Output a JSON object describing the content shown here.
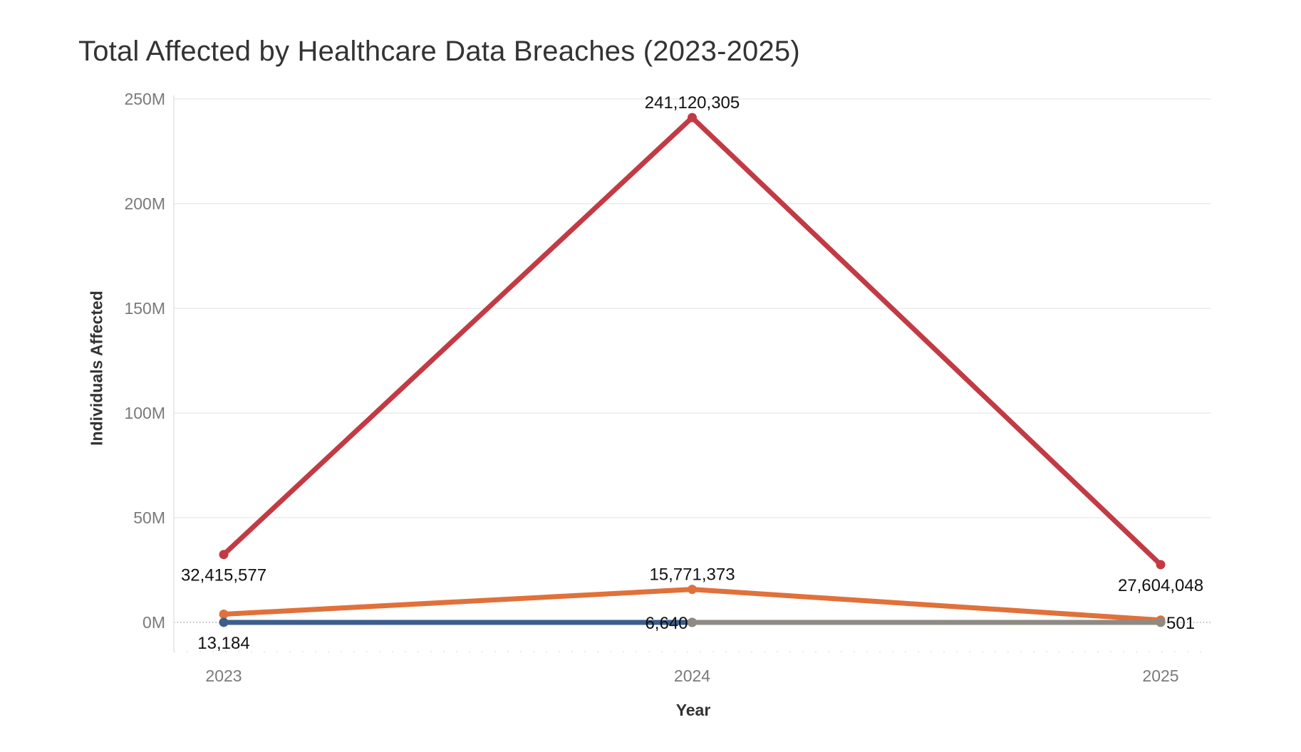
{
  "chart_data": {
    "type": "line",
    "title": "Total Affected by Healthcare Data Breaches (2023-2025)",
    "xlabel": "Year",
    "ylabel": "Individuals Affected",
    "categories": [
      "2023",
      "2024",
      "2025"
    ],
    "ylim": [
      -14000000,
      250000000
    ],
    "yticks": [
      {
        "value": 0,
        "label": "0M"
      },
      {
        "value": 50000000,
        "label": "50M"
      },
      {
        "value": 100000000,
        "label": "100M"
      },
      {
        "value": 150000000,
        "label": "150M"
      },
      {
        "value": 200000000,
        "label": "200M"
      },
      {
        "value": 250000000,
        "label": "250M"
      }
    ],
    "grid": true,
    "legend": "none",
    "series": [
      {
        "color": "#c23b44",
        "values": [
          32415577,
          241120305,
          27604048
        ],
        "labels": [
          "32,415,577",
          "241,120,305",
          "27,604,048"
        ],
        "label_position": [
          "below",
          "above",
          "below"
        ]
      },
      {
        "color": "#e0713a",
        "values": [
          3900000,
          15771373,
          1100000
        ],
        "labels": [
          null,
          "15,771,373",
          null
        ],
        "label_position": [
          null,
          "above",
          null
        ]
      },
      {
        "color": "#3b5e8c",
        "values": [
          13184,
          6640,
          null
        ],
        "labels": [
          "13,184",
          "6,640",
          null
        ],
        "label_position": [
          "below",
          "left",
          null
        ]
      },
      {
        "color": "#8f8a83",
        "values": [
          null,
          6640,
          501
        ],
        "labels": [
          null,
          null,
          "501"
        ],
        "label_position": [
          null,
          null,
          "right"
        ]
      }
    ]
  }
}
